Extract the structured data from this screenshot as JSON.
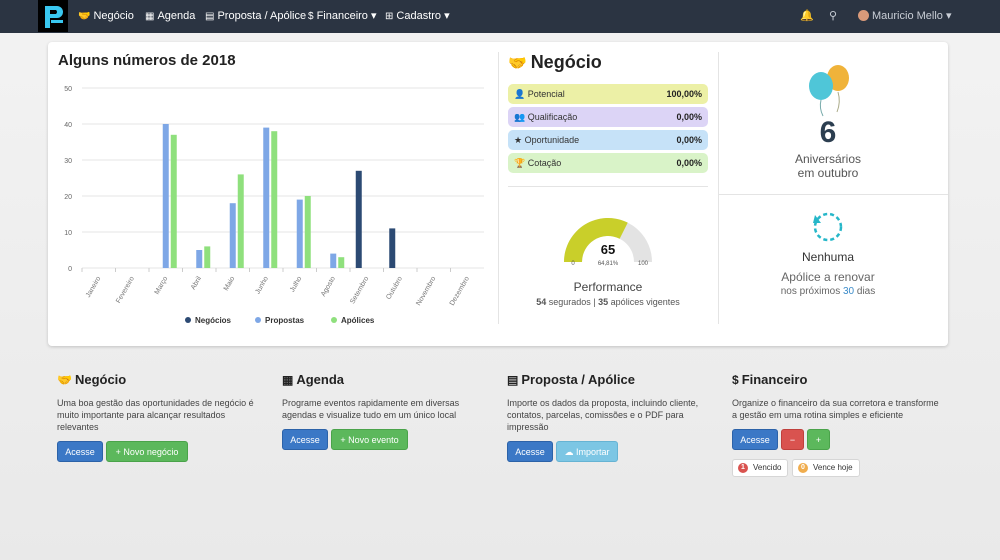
{
  "nav": {
    "items": [
      {
        "icon": "handshake-icon",
        "glyph": "🤝",
        "label": "Negócio"
      },
      {
        "icon": "calendar-icon",
        "glyph": "▦",
        "label": "Agenda"
      },
      {
        "icon": "document-icon",
        "glyph": "▤",
        "label": "Proposta / Apólice"
      },
      {
        "icon": "dollar-icon",
        "glyph": "$",
        "label": "Financeiro ▾"
      },
      {
        "icon": "plus-square-icon",
        "glyph": "⊞",
        "label": "Cadastro ▾"
      }
    ],
    "user": "Mauricio Mello ▾"
  },
  "chart_data": {
    "type": "bar",
    "title": "Alguns números de 2018",
    "categories": [
      "Janeiro",
      "Fevereiro",
      "Março",
      "Abril",
      "Maio",
      "Junho",
      "Julho",
      "Agosto",
      "Setembro",
      "Outubro",
      "Novembro",
      "Dezembro"
    ],
    "series": [
      {
        "name": "Negócios",
        "color": "#2c4a73",
        "values": [
          0,
          0,
          0,
          0,
          0,
          0,
          0,
          0,
          27,
          11,
          0,
          0
        ]
      },
      {
        "name": "Propostas",
        "color": "#7ea7e6",
        "values": [
          0,
          0,
          40,
          5,
          18,
          39,
          19,
          4,
          0,
          0,
          0,
          0
        ]
      },
      {
        "name": "Apólices",
        "color": "#8fe07d",
        "values": [
          0,
          0,
          37,
          6,
          26,
          38,
          20,
          3,
          0,
          0,
          0,
          0
        ]
      }
    ],
    "ylim": [
      0,
      50
    ],
    "yticks": [
      0,
      10,
      20,
      30,
      40,
      50
    ],
    "legend": "bottom",
    "grid": true
  },
  "negocio": {
    "title": "Negócio",
    "rows": [
      {
        "label": "Potencial",
        "icon": "user-icon",
        "glyph": "👤",
        "value": "100,00%",
        "color": "#ecf0a6"
      },
      {
        "label": "Qualificação",
        "icon": "users-icon",
        "glyph": "👥",
        "value": "0,00%",
        "color": "#dcd4f6"
      },
      {
        "label": "Oportunidade",
        "icon": "star-icon",
        "glyph": "★",
        "value": "0,00%",
        "color": "#c6e2f8"
      },
      {
        "label": "Cotação",
        "icon": "trophy-icon",
        "glyph": "🏆",
        "value": "0,00%",
        "color": "#d9f3c8"
      }
    ]
  },
  "performance": {
    "value": "65",
    "percent_label": "64,81%",
    "min": "0",
    "max": "100",
    "fraction": 0.6481,
    "label": "Performance",
    "segurados": "54",
    "segurados_text": " segurados | ",
    "apolices": "35",
    "apolices_text": " apólices vigentes"
  },
  "aniversarios": {
    "count": "6",
    "line1": "Aniversários",
    "line2": "em outubro"
  },
  "renovar": {
    "head": "Nenhuma",
    "text": "Apólice a renovar",
    "sub_pre": "nos próximos ",
    "days": "30",
    "sub_post": " dias"
  },
  "sections": {
    "negocio": {
      "title": "Negócio",
      "text": "Uma boa gestão das oportunidades de negócio é muito importante para alcançar resultados relevantes",
      "btn1": "Acesse",
      "btn2": "+ Novo negócio"
    },
    "agenda": {
      "title": "Agenda",
      "text": "Programe eventos rapidamente em diversas agendas e visualize tudo em um único local",
      "btn1": "Acesse",
      "btn2": "+ Novo evento"
    },
    "proposta": {
      "title": "Proposta / Apólice",
      "text": "Importe os dados da proposta, incluindo cliente, contatos, parcelas, comissões e o PDF para impressão",
      "btn1": "Acesse",
      "btn2": "☁ Importar"
    },
    "financeiro": {
      "title": "Financeiro",
      "text": "Organize o financeiro da sua corretora e transforme a gestão em uma rotina simples e eficiente",
      "btn1": "Acesse",
      "minus": "−",
      "plus": "+",
      "tag1_count": "1",
      "tag1": "Vencido",
      "tag2_count": "0",
      "tag2": "Vence hoje"
    }
  }
}
